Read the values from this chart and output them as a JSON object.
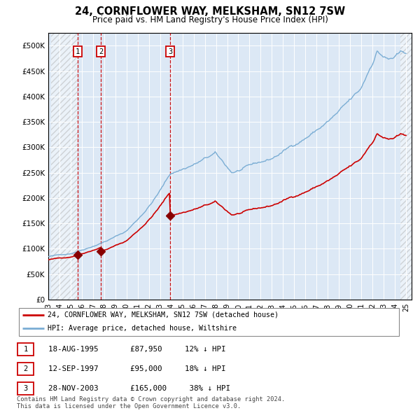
{
  "title": "24, CORNFLOWER WAY, MELKSHAM, SN12 7SW",
  "subtitle": "Price paid vs. HM Land Registry's House Price Index (HPI)",
  "sales": [
    {
      "label": "1",
      "date_num": 1995.63,
      "price": 87950,
      "date_str": "18-AUG-1995",
      "pct": "12% ↓ HPI"
    },
    {
      "label": "2",
      "date_num": 1997.71,
      "price": 95000,
      "date_str": "12-SEP-1997",
      "pct": "18% ↓ HPI"
    },
    {
      "label": "3",
      "date_num": 2003.91,
      "price": 165000,
      "date_str": "28-NOV-2003",
      "pct": "38% ↓ HPI"
    }
  ],
  "property_line_color": "#cc0000",
  "hpi_line_color": "#7aadd4",
  "sale_dot_color": "#880000",
  "sale_vline_color": "#cc0000",
  "sale_box_color": "#cc0000",
  "ylim": [
    0,
    525000
  ],
  "yticks": [
    0,
    50000,
    100000,
    150000,
    200000,
    250000,
    300000,
    350000,
    400000,
    450000,
    500000
  ],
  "xlim": [
    1993.25,
    2025.5
  ],
  "xticks": [
    1993,
    1994,
    1995,
    1996,
    1997,
    1998,
    1999,
    2000,
    2001,
    2002,
    2003,
    2004,
    2005,
    2006,
    2007,
    2008,
    2009,
    2010,
    2011,
    2012,
    2013,
    2014,
    2015,
    2016,
    2017,
    2018,
    2019,
    2020,
    2021,
    2022,
    2023,
    2024,
    2025
  ],
  "bg_color": "#dce8f5",
  "legend_label_property": "24, CORNFLOWER WAY, MELKSHAM, SN12 7SW (detached house)",
  "legend_label_hpi": "HPI: Average price, detached house, Wiltshire",
  "footer": "Contains HM Land Registry data © Crown copyright and database right 2024.\nThis data is licensed under the Open Government Licence v3.0.",
  "hatch_left_end": 1995.63,
  "hatch_right_start": 2024.5,
  "sale1_date": 1995.63,
  "sale1_price": 87950,
  "sale2_date": 1997.71,
  "sale2_price": 95000,
  "sale3_date": 2003.91,
  "sale3_price": 165000
}
